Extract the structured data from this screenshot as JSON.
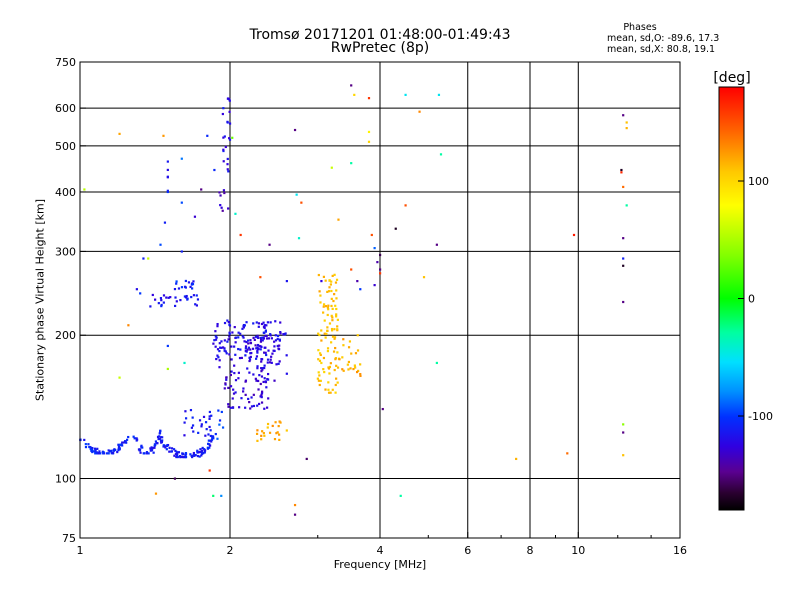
{
  "chart_data": {
    "type": "scatter",
    "title": "Tromsø 20171201 01:48:00-01:49:43",
    "subtitle": "RwPretec (8p)",
    "xlabel": "Frequency [MHz]",
    "ylabel": "Stationary phase Virtual Height [km]",
    "x_scale": "log",
    "y_scale": "log",
    "xlim": [
      1,
      16
    ],
    "ylim": [
      75,
      750
    ],
    "x_ticks": [
      1,
      2,
      4,
      6,
      8,
      10,
      16
    ],
    "y_ticks": [
      75,
      100,
      200,
      300,
      400,
      500,
      600,
      750
    ],
    "x_grid": [
      2,
      4,
      6,
      8,
      10
    ],
    "y_grid": [
      100,
      200,
      300,
      400,
      500,
      600
    ],
    "phase_info": {
      "title": "Phases",
      "o_line": "mean, sd,O: -89.6, 17.3",
      "x_line": "mean, sd,X:  80.8, 19.1"
    },
    "colorbar": {
      "label": "[deg]",
      "range": [
        -180,
        180
      ],
      "ticks": [
        100,
        0,
        -100
      ]
    },
    "clusters": [
      {
        "xr": [
          1.0,
          1.25
        ],
        "yr": [
          113,
          124
        ],
        "n": 70,
        "phase": -108,
        "shape": "u"
      },
      {
        "xr": [
          1.28,
          1.45
        ],
        "yr": [
          113,
          128
        ],
        "n": 40,
        "phase": -112,
        "shape": "u"
      },
      {
        "xr": [
          1.45,
          1.85
        ],
        "yr": [
          111,
          124
        ],
        "n": 90,
        "phase": -112,
        "shape": "u"
      },
      {
        "xr": [
          1.6,
          1.85
        ],
        "yr": [
          122,
          140
        ],
        "n": 25,
        "phase": -115
      },
      {
        "xr": [
          1.38,
          1.75
        ],
        "yr": [
          230,
          245
        ],
        "n": 25,
        "phase": -115
      },
      {
        "xr": [
          1.62,
          1.72
        ],
        "yr": [
          240,
          262
        ],
        "n": 10,
        "phase": -110
      },
      {
        "xr": [
          1.55,
          1.66
        ],
        "yr": [
          250,
          262
        ],
        "n": 8,
        "phase": -105
      },
      {
        "xr": [
          1.85,
          2.4
        ],
        "yr": [
          170,
          215
        ],
        "n": 110,
        "phase": -120
      },
      {
        "xr": [
          1.95,
          2.4
        ],
        "yr": [
          140,
          170
        ],
        "n": 60,
        "phase": -128
      },
      {
        "xr": [
          2.15,
          2.6
        ],
        "yr": [
          160,
          200
        ],
        "n": 60,
        "phase": -125
      },
      {
        "xr": [
          2.3,
          2.6
        ],
        "yr": [
          195,
          215
        ],
        "n": 25,
        "phase": -118
      },
      {
        "xr": [
          1.93,
          2.0
        ],
        "yr": [
          440,
          640
        ],
        "n": 22,
        "phase": -120
      },
      {
        "xr": [
          1.9,
          2.0
        ],
        "yr": [
          365,
          405
        ],
        "n": 8,
        "phase": -135
      },
      {
        "xr": [
          1.5,
          1.5
        ],
        "yr": [
          400,
          490
        ],
        "n": 6,
        "phase": -110
      },
      {
        "xr": [
          3.0,
          3.3
        ],
        "yr": [
          150,
          270
        ],
        "n": 100,
        "phase": 110
      },
      {
        "xr": [
          3.2,
          3.7
        ],
        "yr": [
          170,
          205
        ],
        "n": 20,
        "phase": 115
      },
      {
        "xr": [
          3.35,
          3.7
        ],
        "yr": [
          160,
          170
        ],
        "n": 8,
        "phase": 120
      },
      {
        "xr": [
          2.25,
          2.6
        ],
        "yr": [
          120,
          132
        ],
        "n": 22,
        "phase": 118
      },
      {
        "xr": [
          1.85,
          1.95
        ],
        "yr": [
          120,
          140
        ],
        "n": 8,
        "phase": -100
      }
    ],
    "points": [
      {
        "x": 1.02,
        "y": 405,
        "phase": 55
      },
      {
        "x": 1.2,
        "y": 163,
        "phase": 60
      },
      {
        "x": 1.2,
        "y": 530,
        "phase": 120
      },
      {
        "x": 1.25,
        "y": 210,
        "phase": 130
      },
      {
        "x": 1.3,
        "y": 250,
        "phase": -120
      },
      {
        "x": 1.32,
        "y": 245,
        "phase": -100
      },
      {
        "x": 1.34,
        "y": 290,
        "phase": -110
      },
      {
        "x": 1.37,
        "y": 290,
        "phase": 60
      },
      {
        "x": 1.42,
        "y": 93,
        "phase": 125
      },
      {
        "x": 1.45,
        "y": 310,
        "phase": -95
      },
      {
        "x": 1.47,
        "y": 525,
        "phase": 125
      },
      {
        "x": 1.48,
        "y": 345,
        "phase": -110
      },
      {
        "x": 1.5,
        "y": 190,
        "phase": -100
      },
      {
        "x": 1.5,
        "y": 170,
        "phase": 50
      },
      {
        "x": 1.55,
        "y": 100,
        "phase": -160
      },
      {
        "x": 1.6,
        "y": 470,
        "phase": -85
      },
      {
        "x": 1.6,
        "y": 380,
        "phase": -95
      },
      {
        "x": 1.6,
        "y": 300,
        "phase": -110
      },
      {
        "x": 1.62,
        "y": 175,
        "phase": -40
      },
      {
        "x": 1.7,
        "y": 355,
        "phase": -130
      },
      {
        "x": 1.75,
        "y": 405,
        "phase": -150
      },
      {
        "x": 1.8,
        "y": 525,
        "phase": -105
      },
      {
        "x": 1.82,
        "y": 104,
        "phase": 160
      },
      {
        "x": 1.85,
        "y": 92,
        "phase": -20
      },
      {
        "x": 1.86,
        "y": 445,
        "phase": -105
      },
      {
        "x": 1.92,
        "y": 92,
        "phase": -80
      },
      {
        "x": 2.02,
        "y": 520,
        "phase": 30
      },
      {
        "x": 2.05,
        "y": 360,
        "phase": -40
      },
      {
        "x": 2.1,
        "y": 325,
        "phase": 160
      },
      {
        "x": 2.3,
        "y": 265,
        "phase": 150
      },
      {
        "x": 2.4,
        "y": 310,
        "phase": -150
      },
      {
        "x": 2.6,
        "y": 260,
        "phase": -115
      },
      {
        "x": 2.7,
        "y": 540,
        "phase": -150
      },
      {
        "x": 2.72,
        "y": 395,
        "phase": -50
      },
      {
        "x": 2.75,
        "y": 320,
        "phase": -40
      },
      {
        "x": 2.78,
        "y": 380,
        "phase": 150
      },
      {
        "x": 2.7,
        "y": 88,
        "phase": 130
      },
      {
        "x": 2.7,
        "y": 84,
        "phase": -150
      },
      {
        "x": 2.85,
        "y": 110,
        "phase": -155
      },
      {
        "x": 3.05,
        "y": 260,
        "phase": -125
      },
      {
        "x": 3.2,
        "y": 450,
        "phase": 60
      },
      {
        "x": 3.3,
        "y": 350,
        "phase": 120
      },
      {
        "x": 3.5,
        "y": 670,
        "phase": -150
      },
      {
        "x": 3.5,
        "y": 460,
        "phase": -30
      },
      {
        "x": 3.5,
        "y": 275,
        "phase": 150
      },
      {
        "x": 3.55,
        "y": 640,
        "phase": 100
      },
      {
        "x": 3.6,
        "y": 260,
        "phase": -140
      },
      {
        "x": 3.65,
        "y": 250,
        "phase": -100
      },
      {
        "x": 3.8,
        "y": 630,
        "phase": 160
      },
      {
        "x": 3.8,
        "y": 535,
        "phase": 85
      },
      {
        "x": 3.8,
        "y": 510,
        "phase": 100
      },
      {
        "x": 3.85,
        "y": 325,
        "phase": 150
      },
      {
        "x": 3.9,
        "y": 305,
        "phase": -90
      },
      {
        "x": 3.9,
        "y": 255,
        "phase": -130
      },
      {
        "x": 3.95,
        "y": 285,
        "phase": -140
      },
      {
        "x": 4.0,
        "y": 295,
        "phase": -160
      },
      {
        "x": 4.0,
        "y": 275,
        "phase": -150
      },
      {
        "x": 4.0,
        "y": 270,
        "phase": 160
      },
      {
        "x": 4.05,
        "y": 140,
        "phase": -150
      },
      {
        "x": 4.3,
        "y": 335,
        "phase": -170
      },
      {
        "x": 4.4,
        "y": 92,
        "phase": -30
      },
      {
        "x": 4.5,
        "y": 375,
        "phase": 150
      },
      {
        "x": 4.5,
        "y": 640,
        "phase": -50
      },
      {
        "x": 4.8,
        "y": 590,
        "phase": 130
      },
      {
        "x": 4.9,
        "y": 265,
        "phase": 110
      },
      {
        "x": 5.2,
        "y": 310,
        "phase": -150
      },
      {
        "x": 5.2,
        "y": 175,
        "phase": -30
      },
      {
        "x": 5.25,
        "y": 640,
        "phase": -50
      },
      {
        "x": 5.3,
        "y": 480,
        "phase": -30
      },
      {
        "x": 7.5,
        "y": 110,
        "phase": 115
      },
      {
        "x": 9.5,
        "y": 113,
        "phase": 140
      },
      {
        "x": 9.8,
        "y": 325,
        "phase": 170
      },
      {
        "x": 12.3,
        "y": 580,
        "phase": -150
      },
      {
        "x": 12.5,
        "y": 560,
        "phase": 110
      },
      {
        "x": 12.5,
        "y": 545,
        "phase": 115
      },
      {
        "x": 12.2,
        "y": 445,
        "phase": -170
      },
      {
        "x": 12.2,
        "y": 440,
        "phase": 165
      },
      {
        "x": 12.3,
        "y": 410,
        "phase": 140
      },
      {
        "x": 12.5,
        "y": 375,
        "phase": -30
      },
      {
        "x": 12.3,
        "y": 320,
        "phase": -150
      },
      {
        "x": 12.3,
        "y": 290,
        "phase": -110
      },
      {
        "x": 12.3,
        "y": 280,
        "phase": -170
      },
      {
        "x": 12.3,
        "y": 235,
        "phase": -150
      },
      {
        "x": 12.3,
        "y": 130,
        "phase": 40
      },
      {
        "x": 12.3,
        "y": 125,
        "phase": -150
      },
      {
        "x": 12.3,
        "y": 112,
        "phase": 110
      }
    ]
  }
}
